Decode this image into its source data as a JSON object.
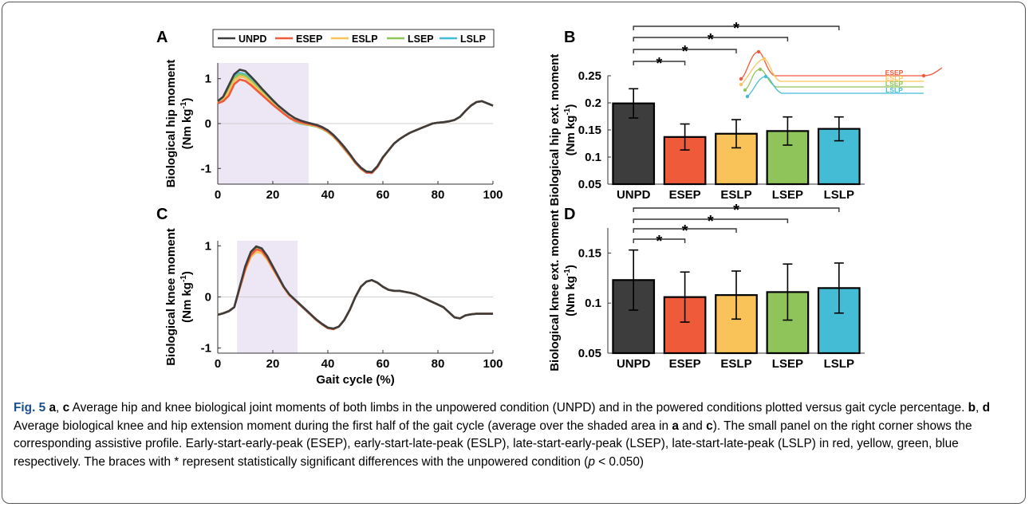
{
  "figure": {
    "caption_label": "Fig. 5",
    "caption_parts": {
      "p1": "a",
      "p2": ", ",
      "p3": "c",
      "p4": " Average hip and knee biological joint moments of both limbs in the unpowered condition (UNPD) and in the powered conditions plotted versus gait cycle percentage. ",
      "p5": "b",
      "p6": ", ",
      "p7": "d",
      "p8": " Average biological knee and hip extension moment during the first half of the gait cycle (average over the shaded area in ",
      "p9": "a",
      "p10": " and ",
      "p11": "c",
      "p12": "). The small panel on the right corner shows the corresponding assistive profile. Early-start-early-peak (ESEP), early-start-late-peak (ESLP), late-start-early-peak (LSEP), late-start-late-peak (LSLP) in red, yellow, green, blue respectively. The braces with * represent statistically significant differences with the unpowered condition (",
      "p13": "p",
      "p14": " < 0.050)"
    }
  },
  "colors": {
    "UNPD": "#3d3d3d",
    "ESEP": "#ef5a3a",
    "ESLP": "#f9c35a",
    "LSEP": "#8fc45a",
    "LSLP": "#45bcd5",
    "shade": "#ece6f5"
  },
  "chart_data": [
    {
      "panel": "A",
      "type": "line",
      "xlabel": "",
      "ylabel": "Biological hip moment",
      "yunit": "(Nm kg⁻¹)",
      "xlim": [
        0,
        100
      ],
      "ylim": [
        -1.35,
        1.35
      ],
      "xticks": [
        "0",
        "20",
        "40",
        "60",
        "80",
        "100"
      ],
      "yticks": [
        "1",
        "0",
        "-1"
      ],
      "shaded_range": [
        0,
        33
      ],
      "legend": [
        "UNPD",
        "ESEP",
        "ESLP",
        "LSEP",
        "LSLP"
      ],
      "legend_placement": "top",
      "x": [
        0,
        2,
        4,
        6,
        8,
        10,
        12,
        14,
        16,
        18,
        20,
        22,
        24,
        26,
        28,
        30,
        32,
        34,
        36,
        38,
        40,
        42,
        44,
        46,
        48,
        50,
        52,
        54,
        56,
        58,
        60,
        62,
        64,
        66,
        68,
        70,
        72,
        74,
        76,
        78,
        80,
        82,
        84,
        86,
        88,
        90,
        92,
        94,
        96,
        98,
        100
      ],
      "series": [
        {
          "name": "UNPD",
          "values": [
            0.5,
            0.6,
            0.85,
            1.1,
            1.2,
            1.17,
            1.05,
            0.92,
            0.78,
            0.65,
            0.52,
            0.4,
            0.3,
            0.2,
            0.12,
            0.07,
            0.03,
            0.0,
            -0.03,
            -0.08,
            -0.15,
            -0.25,
            -0.38,
            -0.52,
            -0.68,
            -0.85,
            -0.98,
            -1.07,
            -1.08,
            -0.95,
            -0.75,
            -0.6,
            -0.45,
            -0.35,
            -0.27,
            -0.2,
            -0.15,
            -0.1,
            -0.05,
            0.0,
            0.02,
            0.03,
            0.05,
            0.08,
            0.15,
            0.28,
            0.4,
            0.48,
            0.5,
            0.45,
            0.4
          ]
        },
        {
          "name": "ESEP",
          "values": [
            0.45,
            0.5,
            0.62,
            0.88,
            0.98,
            0.95,
            0.86,
            0.75,
            0.64,
            0.53,
            0.42,
            0.32,
            0.22,
            0.13,
            0.07,
            0.03,
            0.0,
            -0.02,
            -0.05,
            -0.1,
            -0.17,
            -0.27,
            -0.4,
            -0.55,
            -0.7,
            -0.87,
            -1.0,
            -1.09,
            -1.1,
            -0.97,
            -0.76,
            -0.6,
            -0.45,
            -0.35,
            -0.27,
            -0.2,
            -0.15,
            -0.1,
            -0.05,
            0.0,
            0.02,
            0.03,
            0.05,
            0.08,
            0.15,
            0.28,
            0.4,
            0.48,
            0.5,
            0.45,
            0.4
          ]
        },
        {
          "name": "ESLP",
          "values": [
            0.45,
            0.52,
            0.7,
            0.95,
            1.05,
            1.02,
            0.92,
            0.8,
            0.68,
            0.56,
            0.44,
            0.33,
            0.23,
            0.13,
            0.06,
            0.02,
            -0.01,
            -0.03,
            -0.06,
            -0.11,
            -0.18,
            -0.28,
            -0.41,
            -0.56,
            -0.72,
            -0.88,
            -1.01,
            -1.09,
            -1.1,
            -0.97,
            -0.76,
            -0.6,
            -0.45,
            -0.35,
            -0.27,
            -0.2,
            -0.15,
            -0.1,
            -0.05,
            0.0,
            0.02,
            0.03,
            0.05,
            0.08,
            0.15,
            0.28,
            0.4,
            0.48,
            0.5,
            0.45,
            0.4
          ]
        },
        {
          "name": "LSEP",
          "values": [
            0.48,
            0.55,
            0.78,
            1.02,
            1.1,
            1.07,
            0.97,
            0.84,
            0.71,
            0.58,
            0.45,
            0.34,
            0.23,
            0.13,
            0.06,
            0.01,
            -0.02,
            -0.04,
            -0.07,
            -0.12,
            -0.19,
            -0.29,
            -0.42,
            -0.57,
            -0.72,
            -0.88,
            -1.01,
            -1.09,
            -1.1,
            -0.97,
            -0.76,
            -0.6,
            -0.45,
            -0.35,
            -0.27,
            -0.2,
            -0.15,
            -0.1,
            -0.05,
            0.0,
            0.02,
            0.03,
            0.05,
            0.08,
            0.15,
            0.28,
            0.4,
            0.48,
            0.5,
            0.45,
            0.4
          ]
        },
        {
          "name": "LSLP",
          "values": [
            0.48,
            0.56,
            0.8,
            1.05,
            1.13,
            1.1,
            1.0,
            0.87,
            0.74,
            0.6,
            0.47,
            0.35,
            0.24,
            0.13,
            0.05,
            0.0,
            -0.02,
            -0.04,
            -0.07,
            -0.12,
            -0.19,
            -0.29,
            -0.42,
            -0.57,
            -0.72,
            -0.88,
            -1.01,
            -1.09,
            -1.1,
            -0.97,
            -0.76,
            -0.6,
            -0.45,
            -0.35,
            -0.27,
            -0.2,
            -0.15,
            -0.1,
            -0.05,
            0.0,
            0.02,
            0.03,
            0.05,
            0.08,
            0.15,
            0.28,
            0.4,
            0.48,
            0.5,
            0.45,
            0.4
          ]
        }
      ]
    },
    {
      "panel": "B",
      "type": "bar",
      "categories": [
        "UNPD",
        "ESEP",
        "ESLP",
        "LSEP",
        "LSLP"
      ],
      "values": [
        0.199,
        0.137,
        0.143,
        0.148,
        0.152
      ],
      "error": [
        0.027,
        0.024,
        0.026,
        0.026,
        0.022
      ],
      "ylabel": "Biological hip ext. moment",
      "yunit": "(Nm kg⁻¹)",
      "ylim": [
        0.05,
        0.25
      ],
      "yticks": [
        "0.25",
        "0.2",
        "0.15",
        "0.1",
        "0.05"
      ],
      "significance_marker": "*",
      "significance_brackets": [
        "UNPD-ESEP",
        "UNPD-ESLP",
        "UNPD-LSEP",
        "UNPD-LSLP"
      ],
      "inset_labels": [
        "ESEP",
        "ESLP",
        "LSEP",
        "LSLP"
      ]
    },
    {
      "panel": "C",
      "type": "line",
      "xlabel": "Gait cycle (%)",
      "ylabel": "Biological knee moment",
      "yunit": "(Nm kg⁻¹)",
      "xlim": [
        0,
        100
      ],
      "ylim": [
        -1.1,
        1.1
      ],
      "xticks": [
        "0",
        "20",
        "40",
        "60",
        "80",
        "100"
      ],
      "yticks": [
        "1",
        "0",
        "-1"
      ],
      "shaded_range": [
        7,
        29
      ],
      "x": [
        0,
        2,
        4,
        6,
        8,
        10,
        12,
        14,
        16,
        18,
        20,
        22,
        24,
        26,
        28,
        30,
        32,
        34,
        36,
        38,
        40,
        42,
        44,
        46,
        48,
        50,
        52,
        54,
        56,
        58,
        60,
        62,
        64,
        66,
        68,
        70,
        72,
        74,
        76,
        78,
        80,
        82,
        84,
        86,
        88,
        90,
        92,
        94,
        96,
        98,
        100
      ],
      "series": [
        {
          "name": "UNPD",
          "values": [
            -0.35,
            -0.32,
            -0.28,
            -0.2,
            0.2,
            0.6,
            0.88,
            0.99,
            0.95,
            0.8,
            0.6,
            0.4,
            0.2,
            0.05,
            -0.05,
            -0.15,
            -0.25,
            -0.35,
            -0.45,
            -0.53,
            -0.6,
            -0.62,
            -0.58,
            -0.45,
            -0.25,
            0.0,
            0.2,
            0.3,
            0.33,
            0.28,
            0.2,
            0.14,
            0.12,
            0.12,
            0.1,
            0.08,
            0.05,
            0.0,
            -0.05,
            -0.1,
            -0.15,
            -0.2,
            -0.3,
            -0.4,
            -0.42,
            -0.36,
            -0.34,
            -0.33,
            -0.33,
            -0.33,
            -0.33
          ]
        },
        {
          "name": "ESEP",
          "values": [
            -0.35,
            -0.32,
            -0.28,
            -0.2,
            0.18,
            0.55,
            0.82,
            0.93,
            0.9,
            0.76,
            0.57,
            0.38,
            0.19,
            0.04,
            -0.06,
            -0.16,
            -0.26,
            -0.36,
            -0.46,
            -0.54,
            -0.61,
            -0.63,
            -0.58,
            -0.45,
            -0.25,
            0.0,
            0.2,
            0.3,
            0.33,
            0.28,
            0.2,
            0.14,
            0.12,
            0.12,
            0.1,
            0.08,
            0.05,
            0.0,
            -0.05,
            -0.1,
            -0.15,
            -0.2,
            -0.3,
            -0.4,
            -0.42,
            -0.36,
            -0.34,
            -0.33,
            -0.33,
            -0.33,
            -0.33
          ]
        },
        {
          "name": "ESLP",
          "values": [
            -0.35,
            -0.32,
            -0.28,
            -0.2,
            0.16,
            0.52,
            0.78,
            0.88,
            0.86,
            0.73,
            0.55,
            0.37,
            0.18,
            0.03,
            -0.06,
            -0.16,
            -0.26,
            -0.36,
            -0.46,
            -0.54,
            -0.61,
            -0.63,
            -0.58,
            -0.45,
            -0.25,
            0.0,
            0.2,
            0.3,
            0.33,
            0.28,
            0.2,
            0.14,
            0.12,
            0.12,
            0.1,
            0.08,
            0.05,
            0.0,
            -0.05,
            -0.1,
            -0.15,
            -0.2,
            -0.3,
            -0.4,
            -0.42,
            -0.36,
            -0.34,
            -0.33,
            -0.33,
            -0.33,
            -0.33
          ]
        },
        {
          "name": "LSEP",
          "values": [
            -0.35,
            -0.32,
            -0.28,
            -0.2,
            0.19,
            0.58,
            0.85,
            0.96,
            0.92,
            0.78,
            0.58,
            0.39,
            0.19,
            0.04,
            -0.06,
            -0.16,
            -0.26,
            -0.36,
            -0.46,
            -0.54,
            -0.61,
            -0.63,
            -0.58,
            -0.45,
            -0.25,
            0.0,
            0.2,
            0.3,
            0.33,
            0.28,
            0.2,
            0.14,
            0.12,
            0.12,
            0.1,
            0.08,
            0.05,
            0.0,
            -0.05,
            -0.1,
            -0.15,
            -0.2,
            -0.3,
            -0.4,
            -0.42,
            -0.36,
            -0.34,
            -0.33,
            -0.33,
            -0.33,
            -0.33
          ]
        },
        {
          "name": "LSLP",
          "values": [
            -0.35,
            -0.32,
            -0.28,
            -0.2,
            0.19,
            0.58,
            0.86,
            0.97,
            0.93,
            0.79,
            0.59,
            0.39,
            0.19,
            0.04,
            -0.06,
            -0.16,
            -0.26,
            -0.36,
            -0.46,
            -0.54,
            -0.61,
            -0.63,
            -0.58,
            -0.45,
            -0.25,
            0.0,
            0.2,
            0.3,
            0.33,
            0.28,
            0.2,
            0.14,
            0.12,
            0.12,
            0.1,
            0.08,
            0.05,
            0.0,
            -0.05,
            -0.1,
            -0.15,
            -0.2,
            -0.3,
            -0.4,
            -0.42,
            -0.36,
            -0.34,
            -0.33,
            -0.33,
            -0.33,
            -0.33
          ]
        }
      ]
    },
    {
      "panel": "D",
      "type": "bar",
      "categories": [
        "UNPD",
        "ESEP",
        "ESLP",
        "LSEP",
        "LSLP"
      ],
      "values": [
        0.123,
        0.106,
        0.108,
        0.111,
        0.115
      ],
      "error": [
        0.03,
        0.025,
        0.024,
        0.028,
        0.025
      ],
      "ylabel": "Biological knee ext. moment",
      "yunit": "(Nm kg⁻¹)",
      "ylim": [
        0.05,
        0.175
      ],
      "yticks": [
        "0.15",
        "0.1",
        "0.05"
      ],
      "significance_marker": "*",
      "significance_brackets": [
        "UNPD-ESEP",
        "UNPD-ESLP",
        "UNPD-LSEP",
        "UNPD-LSLP"
      ]
    }
  ]
}
